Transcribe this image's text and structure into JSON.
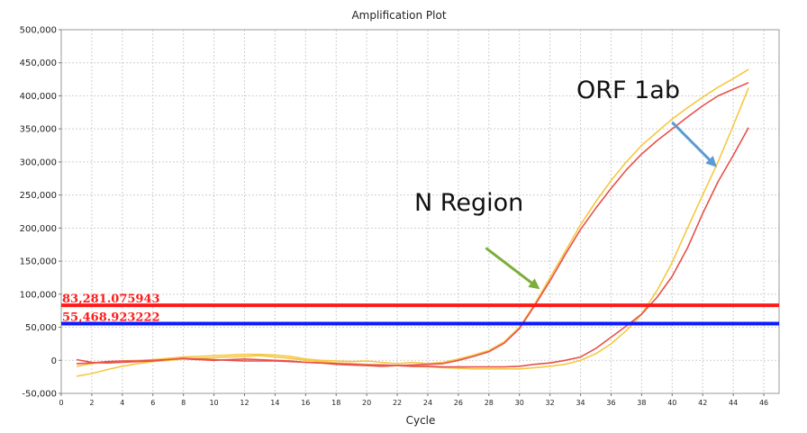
{
  "chart_data": {
    "type": "line",
    "title": "Amplification Plot",
    "xlabel": "Cycle",
    "ylabel": "",
    "xlim": [
      0,
      47
    ],
    "ylim": [
      -50000,
      500000
    ],
    "x_ticks": [
      0,
      2,
      4,
      6,
      8,
      10,
      12,
      14,
      16,
      18,
      20,
      22,
      24,
      26,
      28,
      30,
      32,
      34,
      36,
      38,
      40,
      42,
      44,
      46
    ],
    "x_tick_labels": [
      "0",
      "2",
      "4",
      "6",
      "8",
      "10",
      "12",
      "14",
      "16",
      "18",
      "20",
      "22",
      "24",
      "26",
      "28",
      "30",
      "32",
      "34",
      "36",
      "38",
      "40",
      "42",
      "44",
      "46"
    ],
    "y_ticks": [
      -50000,
      0,
      50000,
      100000,
      150000,
      200000,
      250000,
      300000,
      350000,
      400000,
      450000,
      500000
    ],
    "y_tick_labels": [
      "-50,000",
      "0",
      "50,000",
      "100,000",
      "150,000",
      "200,000",
      "250,000",
      "300,000",
      "350,000",
      "400,000",
      "450,000",
      "500,000"
    ],
    "grid": true,
    "x": [
      1,
      2,
      3,
      4,
      5,
      6,
      7,
      8,
      9,
      10,
      11,
      12,
      13,
      14,
      15,
      16,
      17,
      18,
      19,
      20,
      21,
      22,
      23,
      24,
      25,
      26,
      27,
      28,
      29,
      30,
      31,
      32,
      33,
      34,
      35,
      36,
      37,
      38,
      39,
      40,
      41,
      42,
      43,
      44,
      45
    ],
    "series": [
      {
        "color": "#f5c842",
        "values": [
          -9000,
          -5000,
          -3000,
          -1000,
          0,
          1000,
          3000,
          5000,
          6000,
          7000,
          8000,
          9000,
          9000,
          8000,
          6000,
          2000,
          0,
          -1000,
          -2000,
          -1000,
          -3000,
          -5000,
          -3000,
          -5000,
          -3000,
          2000,
          8000,
          15000,
          28000,
          50000,
          85000,
          125000,
          165000,
          205000,
          240000,
          272000,
          300000,
          325000,
          345000,
          365000,
          382000,
          398000,
          413000,
          426000,
          440000
        ]
      },
      {
        "color": "#e8504a",
        "values": [
          -5000,
          -4000,
          -2000,
          -1000,
          -1000,
          0,
          1000,
          2000,
          1000,
          0,
          1000,
          2000,
          1000,
          0,
          -1000,
          -3000,
          -4000,
          -6000,
          -7000,
          -8000,
          -9000,
          -8000,
          -7000,
          -6000,
          -5000,
          0,
          6000,
          13000,
          26000,
          48000,
          83000,
          120000,
          160000,
          198000,
          230000,
          260000,
          288000,
          312000,
          332000,
          350000,
          368000,
          385000,
          400000,
          410000,
          420000
        ]
      },
      {
        "color": "#f5c842",
        "values": [
          -24000,
          -20000,
          -14000,
          -9000,
          -5000,
          -2000,
          0,
          2000,
          3000,
          4000,
          5000,
          6000,
          7000,
          5000,
          3000,
          0,
          -2000,
          -4000,
          -5000,
          -6000,
          -7000,
          -8000,
          -9000,
          -10000,
          -11000,
          -12000,
          -13000,
          -13000,
          -13000,
          -13000,
          -11000,
          -9000,
          -6000,
          0,
          10000,
          25000,
          45000,
          70000,
          105000,
          148000,
          200000,
          250000,
          300000,
          355000,
          412000
        ]
      },
      {
        "color": "#e8504a",
        "values": [
          1000,
          -3000,
          -4000,
          -3000,
          -2000,
          -1000,
          1000,
          3000,
          2000,
          1000,
          0,
          -1000,
          -1000,
          -1000,
          -2000,
          -3000,
          -4000,
          -5000,
          -6000,
          -7000,
          -7000,
          -8000,
          -9000,
          -9000,
          -10000,
          -10000,
          -10000,
          -10000,
          -10000,
          -9000,
          -6000,
          -4000,
          0,
          5000,
          18000,
          35000,
          52000,
          70000,
          95000,
          127000,
          170000,
          222000,
          270000,
          310000,
          352000
        ]
      }
    ],
    "thresholds": [
      {
        "value": 83281.075943,
        "label": "83,281.075943",
        "color": "#ff1a1a"
      },
      {
        "value": 55468.923222,
        "label": "55,468.923222",
        "color": "#0d1aff"
      }
    ],
    "annotations": [
      {
        "text": "N Region",
        "arrow_color": "#7cae3a",
        "arrow_from": [
          27.8,
          170000
        ],
        "arrow_to": [
          31.2,
          110000
        ]
      },
      {
        "text": "ORF 1ab",
        "arrow_color": "#5b9bd5",
        "arrow_from": [
          40.0,
          360000
        ],
        "arrow_to": [
          42.8,
          295000
        ]
      }
    ]
  }
}
